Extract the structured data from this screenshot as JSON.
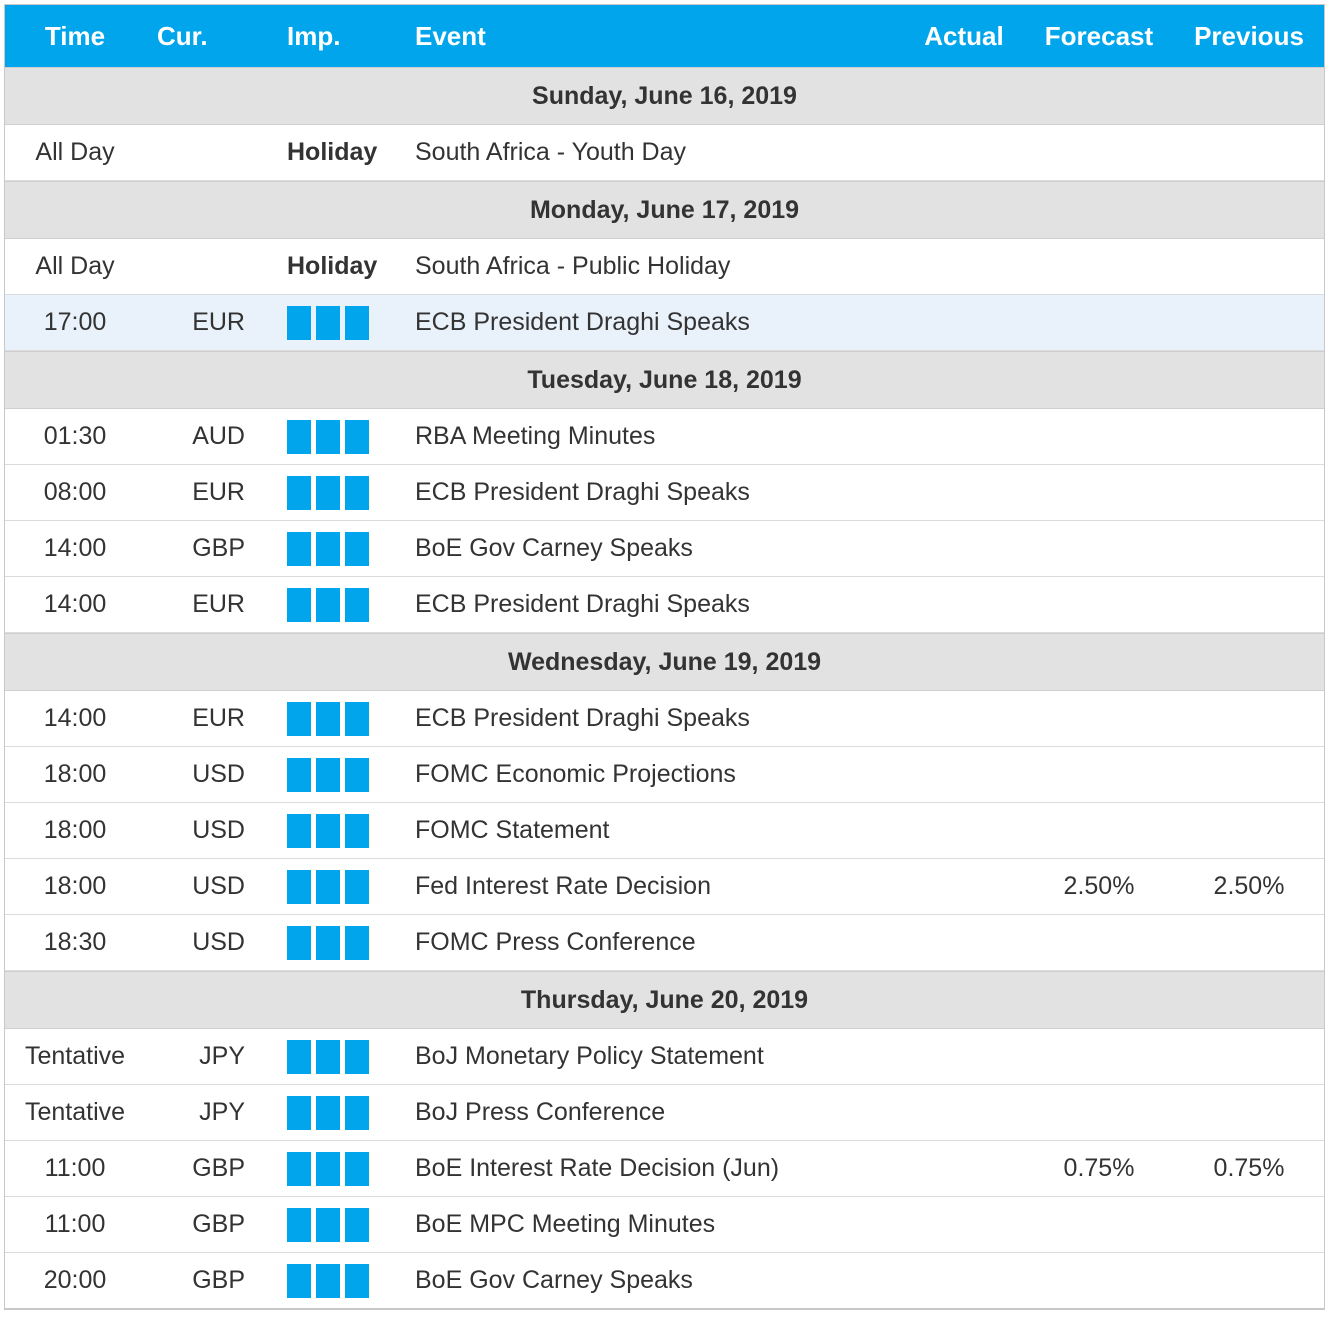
{
  "header": {
    "time": "Time",
    "currency": "Cur.",
    "importance": "Imp.",
    "event": "Event",
    "actual": "Actual",
    "forecast": "Forecast",
    "previous": "Previous"
  },
  "colors": {
    "accent": "#00a5ec",
    "date_bg": "#e2e2e2",
    "highlight_bg": "#e9f2fb"
  },
  "days": [
    {
      "date": "Sunday, June 16, 2019",
      "events": [
        {
          "time": "All Day",
          "currency": "",
          "importance": "Holiday",
          "event": "South Africa - Youth Day",
          "actual": "",
          "forecast": "",
          "previous": ""
        }
      ]
    },
    {
      "date": "Monday, June 17, 2019",
      "events": [
        {
          "time": "All Day",
          "currency": "",
          "importance": "Holiday",
          "event": "South Africa - Public Holiday",
          "actual": "",
          "forecast": "",
          "previous": ""
        },
        {
          "time": "17:00",
          "currency": "EUR",
          "importance": "high",
          "bulls": 3,
          "event": "ECB President Draghi Speaks",
          "actual": "",
          "forecast": "",
          "previous": "",
          "highlight": true
        }
      ]
    },
    {
      "date": "Tuesday, June 18, 2019",
      "events": [
        {
          "time": "01:30",
          "currency": "AUD",
          "importance": "high",
          "bulls": 3,
          "event": "RBA Meeting Minutes",
          "actual": "",
          "forecast": "",
          "previous": ""
        },
        {
          "time": "08:00",
          "currency": "EUR",
          "importance": "high",
          "bulls": 3,
          "event": "ECB President Draghi Speaks",
          "actual": "",
          "forecast": "",
          "previous": ""
        },
        {
          "time": "14:00",
          "currency": "GBP",
          "importance": "high",
          "bulls": 3,
          "event": "BoE Gov Carney Speaks",
          "actual": "",
          "forecast": "",
          "previous": ""
        },
        {
          "time": "14:00",
          "currency": "EUR",
          "importance": "high",
          "bulls": 3,
          "event": "ECB President Draghi Speaks",
          "actual": "",
          "forecast": "",
          "previous": ""
        }
      ]
    },
    {
      "date": "Wednesday, June 19, 2019",
      "events": [
        {
          "time": "14:00",
          "currency": "EUR",
          "importance": "high",
          "bulls": 3,
          "event": "ECB President Draghi Speaks",
          "actual": "",
          "forecast": "",
          "previous": ""
        },
        {
          "time": "18:00",
          "currency": "USD",
          "importance": "high",
          "bulls": 3,
          "event": "FOMC Economic Projections",
          "actual": "",
          "forecast": "",
          "previous": ""
        },
        {
          "time": "18:00",
          "currency": "USD",
          "importance": "high",
          "bulls": 3,
          "event": "FOMC Statement",
          "actual": "",
          "forecast": "",
          "previous": ""
        },
        {
          "time": "18:00",
          "currency": "USD",
          "importance": "high",
          "bulls": 3,
          "event": "Fed Interest Rate Decision",
          "actual": "",
          "forecast": "2.50%",
          "previous": "2.50%"
        },
        {
          "time": "18:30",
          "currency": "USD",
          "importance": "high",
          "bulls": 3,
          "event": "FOMC Press Conference",
          "actual": "",
          "forecast": "",
          "previous": ""
        }
      ]
    },
    {
      "date": "Thursday, June 20, 2019",
      "events": [
        {
          "time": "Tentative",
          "currency": "JPY",
          "importance": "high",
          "bulls": 3,
          "event": "BoJ Monetary Policy Statement",
          "actual": "",
          "forecast": "",
          "previous": ""
        },
        {
          "time": "Tentative",
          "currency": "JPY",
          "importance": "high",
          "bulls": 3,
          "event": "BoJ Press Conference",
          "actual": "",
          "forecast": "",
          "previous": ""
        },
        {
          "time": "11:00",
          "currency": "GBP",
          "importance": "high",
          "bulls": 3,
          "event": "BoE Interest Rate Decision (Jun)",
          "actual": "",
          "forecast": "0.75%",
          "previous": "0.75%"
        },
        {
          "time": "11:00",
          "currency": "GBP",
          "importance": "high",
          "bulls": 3,
          "event": "BoE MPC Meeting Minutes",
          "actual": "",
          "forecast": "",
          "previous": ""
        },
        {
          "time": "20:00",
          "currency": "GBP",
          "importance": "high",
          "bulls": 3,
          "event": "BoE Gov Carney Speaks",
          "actual": "",
          "forecast": "",
          "previous": ""
        }
      ]
    }
  ]
}
